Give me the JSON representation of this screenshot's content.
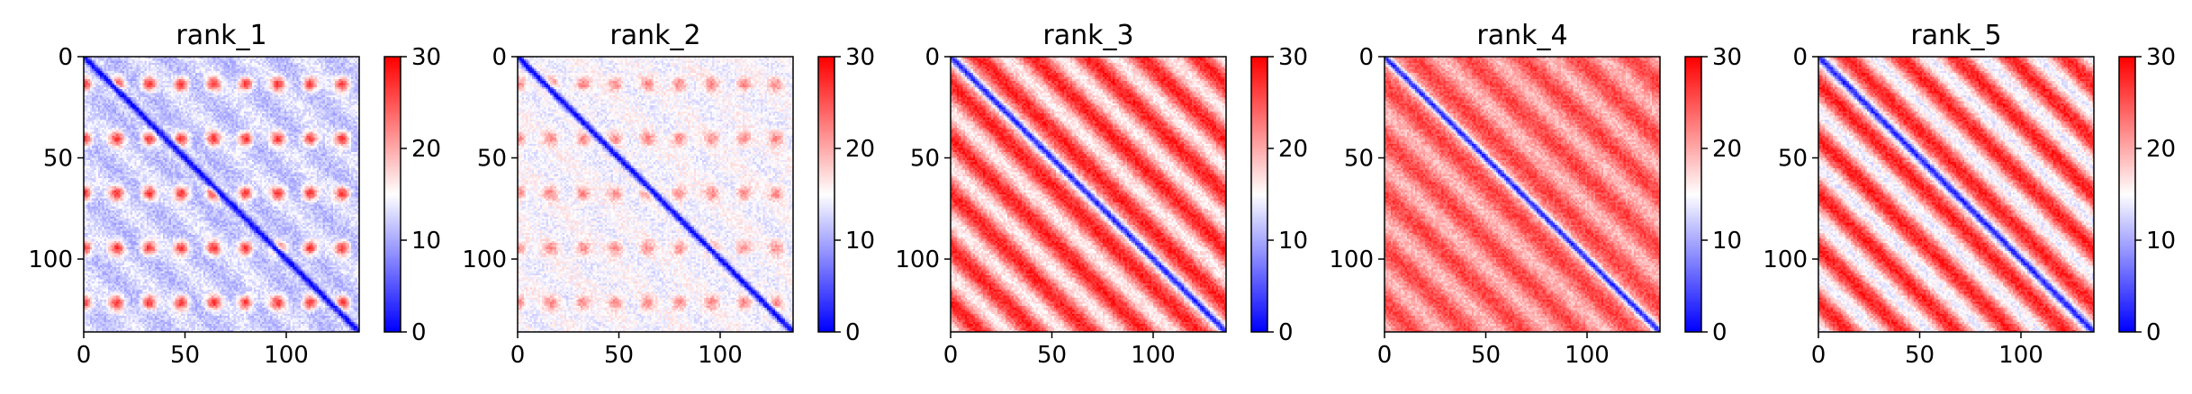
{
  "chart_data": [
    {
      "type": "heatmap",
      "title": "rank_1",
      "grid_size": 136,
      "xticks": [
        "0",
        "50",
        "100"
      ],
      "yticks": [
        "0",
        "50",
        "100"
      ],
      "colorbar": {
        "colormap": "bwr",
        "min": 0,
        "max": 30,
        "ticks": [
          "0",
          "10",
          "20",
          "30"
        ]
      },
      "pattern": {
        "diagonal_value": 0,
        "background_value": 11,
        "stripe_value": 20,
        "blob_value": 27,
        "stripe_period": 27
      },
      "grid": false
    },
    {
      "type": "heatmap",
      "title": "rank_2",
      "grid_size": 136,
      "xticks": [
        "0",
        "50",
        "100"
      ],
      "yticks": [
        "0",
        "50",
        "100"
      ],
      "colorbar": {
        "colormap": "bwr",
        "min": 0,
        "max": 30,
        "ticks": [
          "0",
          "10",
          "20",
          "30"
        ]
      },
      "pattern": {
        "diagonal_value": 0,
        "background_value": 14,
        "stripe_value": 19,
        "blob_value": 22,
        "stripe_period": 27
      },
      "grid": false
    },
    {
      "type": "heatmap",
      "title": "rank_3",
      "grid_size": 136,
      "xticks": [
        "0",
        "50",
        "100"
      ],
      "yticks": [
        "0",
        "50",
        "100"
      ],
      "colorbar": {
        "colormap": "bwr",
        "min": 0,
        "max": 30,
        "ticks": [
          "0",
          "10",
          "20",
          "30"
        ]
      },
      "pattern": {
        "diagonal_value": 2,
        "background_value": 28,
        "stripe_value": 16,
        "blob_value": 28,
        "stripe_period": 27
      },
      "grid": false
    },
    {
      "type": "heatmap",
      "title": "rank_4",
      "grid_size": 136,
      "xticks": [
        "0",
        "50",
        "100"
      ],
      "yticks": [
        "0",
        "50",
        "100"
      ],
      "colorbar": {
        "colormap": "bwr",
        "min": 0,
        "max": 30,
        "ticks": [
          "0",
          "10",
          "20",
          "30"
        ]
      },
      "pattern": {
        "diagonal_value": 2,
        "background_value": 26,
        "stripe_value": 19,
        "blob_value": 26,
        "stripe_period": 27
      },
      "grid": false
    },
    {
      "type": "heatmap",
      "title": "rank_5",
      "grid_size": 136,
      "xticks": [
        "0",
        "50",
        "100"
      ],
      "yticks": [
        "0",
        "50",
        "100"
      ],
      "colorbar": {
        "colormap": "bwr",
        "min": 0,
        "max": 30,
        "ticks": [
          "0",
          "10",
          "20",
          "30"
        ]
      },
      "pattern": {
        "diagonal_value": 2,
        "background_value": 28,
        "stripe_value": 14,
        "blob_value": 28,
        "stripe_period": 27
      },
      "grid": false
    }
  ]
}
